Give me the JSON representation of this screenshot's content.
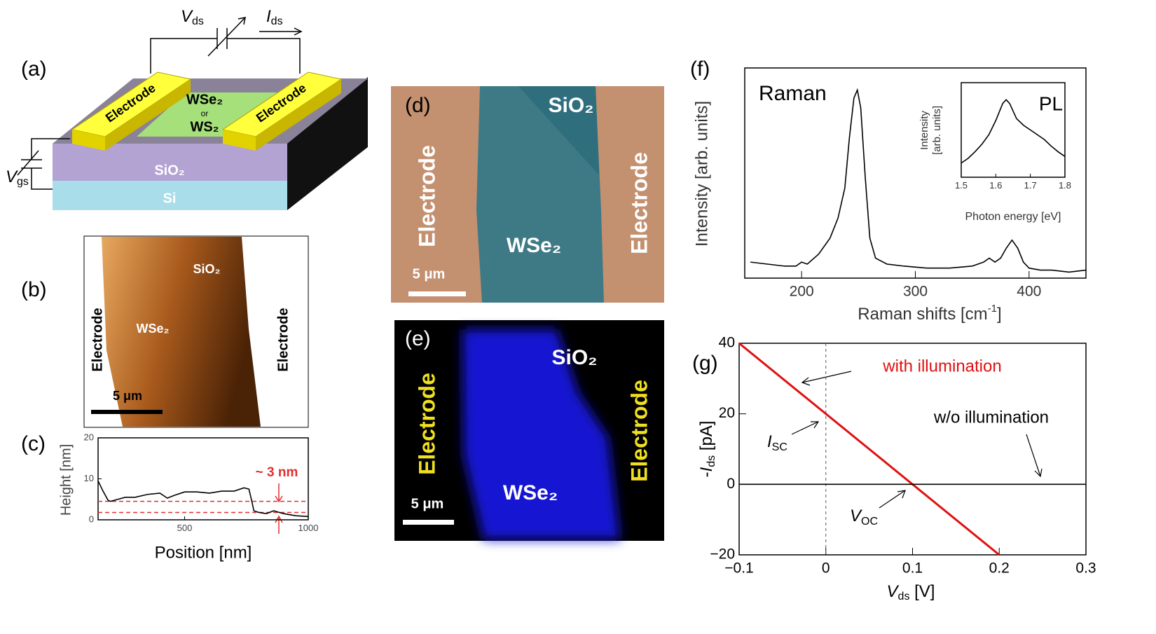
{
  "panels": {
    "a": {
      "label": "(a)",
      "electrode_left": "Electrode",
      "electrode_right": "Electrode",
      "material_1": "WSe₂",
      "or": "or",
      "material_2": "WS₂",
      "oxide": "SiO₂",
      "substrate": "Si",
      "vds": {
        "symbol": "V",
        "sub": "ds"
      },
      "ids": {
        "symbol": "I",
        "sub": "ds"
      },
      "vgs": {
        "symbol": "V",
        "sub": "gs"
      }
    },
    "b": {
      "label": "(b)",
      "electrode_left": "Electrode",
      "electrode_right": "Electrode",
      "oxide": "SiO₂",
      "flake": "WSe₂",
      "scale": "5 μm"
    },
    "c": {
      "label": "(c)"
    },
    "d": {
      "label": "(d)",
      "electrode_left": "Electrode",
      "electrode_right": "Electrode",
      "oxide": "SiO₂",
      "flake": "WSe₂",
      "scale": "5 μm"
    },
    "e": {
      "label": "(e)",
      "electrode_left": "Electrode",
      "electrode_right": "Electrode",
      "oxide": "SiO₂",
      "flake": "WSe₂",
      "scale": "5 μm"
    },
    "f": {
      "label": "(f)"
    },
    "g": {
      "label": "(g)"
    }
  },
  "chart_data": [
    {
      "type": "line",
      "xlabel": "Position [nm]",
      "ylabel": "Height [nm]",
      "xlim": [
        150,
        1000
      ],
      "ylim": [
        0,
        20
      ],
      "xticks": [
        500,
        1000
      ],
      "yticks": [
        0,
        10,
        20
      ],
      "series": [
        {
          "color": "#000000",
          "x": [
            150,
            170,
            190,
            200,
            230,
            260,
            300,
            350,
            400,
            430,
            460,
            500,
            550,
            600,
            650,
            700,
            740,
            760,
            770,
            780,
            800,
            830,
            860,
            900,
            950,
            1000
          ],
          "values": [
            9.5,
            7,
            4.8,
            4.5,
            5,
            5.5,
            5.5,
            6.2,
            6.5,
            5.3,
            6,
            6.8,
            6.8,
            6.5,
            7,
            7,
            7.8,
            7.5,
            5,
            2.2,
            1.8,
            1.5,
            2.2,
            1.5,
            1,
            0.8
          ]
        }
      ],
      "reference_lines": {
        "values": [
          4.5,
          1.8
        ],
        "color": "#e03030"
      },
      "annotation": "~ 3 nm"
    },
    {
      "type": "line",
      "title": "Raman",
      "ylabel": "Intensity [arb. units]",
      "xlabel": {
        "text": "Raman shifts [cm",
        "sup": "-1",
        "end": "]"
      },
      "xlim": [
        150,
        450
      ],
      "ylim": [
        0,
        1.05
      ],
      "xticks": [
        200,
        300,
        400
      ],
      "series": [
        {
          "color": "#000000",
          "x": [
            155,
            170,
            185,
            195,
            200,
            205,
            215,
            225,
            232,
            238,
            242,
            246,
            249,
            252,
            256,
            260,
            265,
            275,
            290,
            310,
            330,
            350,
            360,
            365,
            370,
            375,
            380,
            385,
            390,
            395,
            400,
            410,
            420,
            435,
            450
          ],
          "values": [
            0.08,
            0.07,
            0.06,
            0.06,
            0.08,
            0.07,
            0.12,
            0.2,
            0.3,
            0.45,
            0.7,
            0.9,
            0.94,
            0.85,
            0.5,
            0.2,
            0.1,
            0.07,
            0.06,
            0.05,
            0.05,
            0.06,
            0.08,
            0.1,
            0.08,
            0.1,
            0.15,
            0.19,
            0.15,
            0.08,
            0.05,
            0.04,
            0.04,
            0.03,
            0.04
          ]
        }
      ]
    },
    {
      "type": "line",
      "title": "PL",
      "ylabel": [
        "Intensity",
        "[arb. units]"
      ],
      "xlabel": "Photon energy [eV]",
      "xlim": [
        1.5,
        1.8
      ],
      "ylim": [
        0,
        1
      ],
      "xticks": [
        1.5,
        1.6,
        1.7,
        1.8
      ],
      "series": [
        {
          "color": "#000000",
          "x": [
            1.5,
            1.52,
            1.54,
            1.56,
            1.58,
            1.6,
            1.62,
            1.63,
            1.64,
            1.66,
            1.68,
            1.7,
            1.72,
            1.74,
            1.76,
            1.78,
            1.8
          ],
          "values": [
            0.15,
            0.2,
            0.27,
            0.35,
            0.45,
            0.6,
            0.78,
            0.82,
            0.78,
            0.62,
            0.55,
            0.5,
            0.45,
            0.4,
            0.33,
            0.27,
            0.22
          ]
        }
      ]
    },
    {
      "type": "line",
      "ylabel": {
        "prefix": "-",
        "symbol": "I",
        "sub": "ds",
        "unit": " [pA]"
      },
      "xlabel": {
        "symbol": "V",
        "sub": "ds",
        "unit": " [V]"
      },
      "xlim": [
        -0.1,
        0.3
      ],
      "ylim": [
        -20,
        40
      ],
      "xticks": [
        {
          "value": -0.1,
          "label": "−0.1"
        },
        0,
        0.1,
        0.2,
        0.3
      ],
      "yticks": [
        {
          "value": -20,
          "label": "−20"
        },
        0,
        20,
        40
      ],
      "guide_x": [
        0
      ],
      "series": [
        {
          "color": "#e01010",
          "x": [
            -0.1,
            0.2
          ],
          "values": [
            40,
            -20
          ]
        },
        {
          "color": "#000000",
          "x": [
            -0.1,
            0.3
          ],
          "values": [
            0,
            0
          ]
        }
      ],
      "annotations": {
        "lit": "with illumination",
        "dark": "w/o illumination",
        "isc": {
          "symbol": "I",
          "sub": "SC"
        },
        "voc": {
          "symbol": "V",
          "sub": "OC"
        }
      }
    }
  ]
}
